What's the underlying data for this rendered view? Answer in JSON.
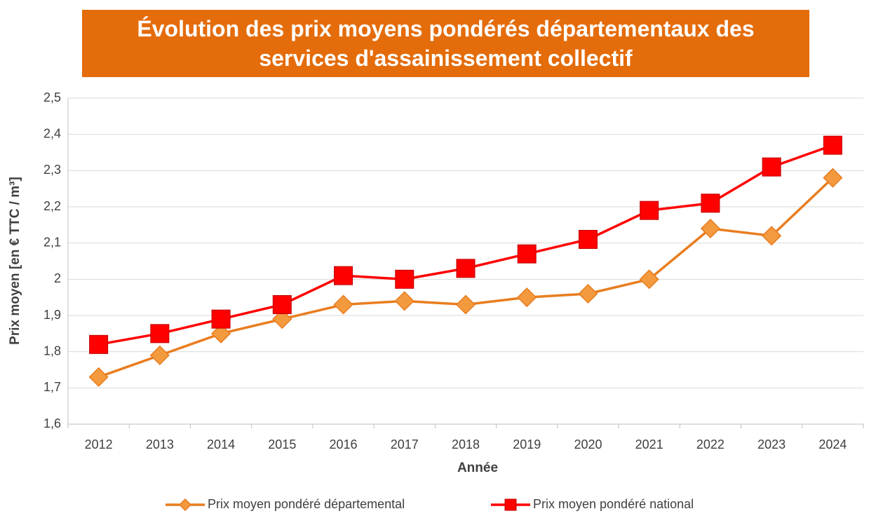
{
  "chart_data": {
    "type": "line",
    "title": "Évolution des prix moyens pondérés départementaux des services d'assainissement collectif",
    "x_label": "Année",
    "y_label": "Prix moyen [en € TTC / m³]",
    "categories": [
      "2012",
      "2013",
      "2014",
      "2015",
      "2016",
      "2017",
      "2018",
      "2019",
      "2020",
      "2021",
      "2022",
      "2023",
      "2024"
    ],
    "series": [
      {
        "name": "Prix moyen pondéré départemental",
        "color": "#e97d1f",
        "marker": "diamond",
        "values": [
          1.73,
          1.79,
          1.85,
          1.89,
          1.93,
          1.94,
          1.93,
          1.95,
          1.96,
          2.0,
          2.14,
          2.12,
          2.28
        ]
      },
      {
        "name": "Prix moyen pondéré national",
        "color": "#ff0000",
        "marker": "square",
        "values": [
          1.82,
          1.85,
          1.89,
          1.93,
          2.01,
          2.0,
          2.03,
          2.07,
          2.11,
          2.19,
          2.21,
          2.31,
          2.37
        ]
      }
    ],
    "ylim": [
      1.6,
      2.5
    ],
    "yticks": [
      {
        "value": 1.6,
        "label": "1,6"
      },
      {
        "value": 1.7,
        "label": "1,7"
      },
      {
        "value": 1.8,
        "label": "1,8"
      },
      {
        "value": 1.9,
        "label": "1,9"
      },
      2,
      {
        "value": 2.1,
        "label": "2,1"
      },
      {
        "value": 2.2,
        "label": "2,2"
      },
      {
        "value": 2.3,
        "label": "2,3"
      },
      {
        "value": 2.4,
        "label": "2,4"
      },
      {
        "value": 2.5,
        "label": "2,5"
      }
    ],
    "grid": true,
    "legend": "bottom"
  }
}
